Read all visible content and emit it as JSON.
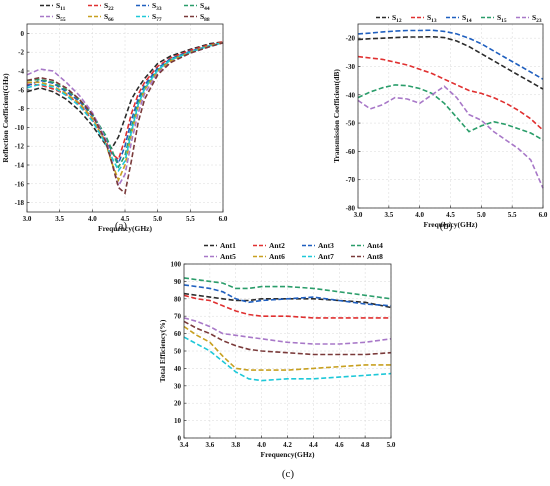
{
  "chart_data": [
    {
      "id": "a",
      "type": "line",
      "caption": "(a)",
      "xlabel": "Frequency(GHz)",
      "ylabel": "Reflection Coefficient(GHz)",
      "xlim": [
        3.0,
        6.0
      ],
      "ylim": [
        -19,
        1
      ],
      "xticks": [
        3.0,
        3.5,
        4.0,
        4.5,
        5.0,
        5.5,
        6.0
      ],
      "xtick_labels": [
        "3.0",
        "3.5",
        "4.0",
        "4.5",
        "5.0",
        "5.5",
        "6.0"
      ],
      "yticks": [
        0,
        -2,
        -4,
        -6,
        -8,
        -10,
        -12,
        -14,
        -16,
        -18
      ],
      "ytick_labels": [
        "0",
        "-2",
        "-4",
        "-6",
        "-8",
        "-10",
        "-12",
        "-14",
        "-16",
        "-18"
      ],
      "grid": true,
      "legend_position": "top",
      "x": [
        3.0,
        3.2,
        3.4,
        3.6,
        3.8,
        4.0,
        4.2,
        4.3,
        4.4,
        4.5,
        4.6,
        4.7,
        4.8,
        5.0,
        5.2,
        5.5,
        5.8,
        6.0
      ],
      "series": [
        {
          "name": "S",
          "sub": "11",
          "color": "#2b2b2b",
          "values": [
            -6.2,
            -5.8,
            -6.2,
            -7.0,
            -8.2,
            -9.8,
            -11.8,
            -12.2,
            -11.0,
            -9.0,
            -7.0,
            -5.8,
            -4.8,
            -3.2,
            -2.4,
            -1.7,
            -1.1,
            -0.9
          ]
        },
        {
          "name": "S",
          "sub": "22",
          "color": "#e03030",
          "values": [
            -5.4,
            -5.5,
            -5.9,
            -6.5,
            -7.5,
            -9.2,
            -11.4,
            -12.8,
            -13.4,
            -11.2,
            -8.5,
            -6.5,
            -5.2,
            -3.5,
            -2.6,
            -1.8,
            -1.2,
            -0.9
          ]
        },
        {
          "name": "S",
          "sub": "33",
          "color": "#1f5fbf",
          "values": [
            -5.6,
            -5.0,
            -5.3,
            -6.2,
            -7.2,
            -8.8,
            -11.0,
            -12.6,
            -13.8,
            -12.0,
            -9.2,
            -7.0,
            -5.5,
            -3.7,
            -2.7,
            -1.9,
            -1.3,
            -1.0
          ]
        },
        {
          "name": "S",
          "sub": "44",
          "color": "#2a9d6a",
          "values": [
            -5.0,
            -4.9,
            -5.2,
            -6.0,
            -7.0,
            -8.6,
            -10.8,
            -12.4,
            -14.2,
            -13.0,
            -10.0,
            -7.4,
            -5.8,
            -3.9,
            -2.8,
            -2.0,
            -1.3,
            -1.0
          ]
        },
        {
          "name": "S",
          "sub": "55",
          "color": "#a878c8",
          "values": [
            -4.4,
            -3.8,
            -4.0,
            -5.2,
            -6.6,
            -8.4,
            -11.2,
            -13.6,
            -16.2,
            -15.0,
            -11.5,
            -8.5,
            -6.4,
            -4.2,
            -3.0,
            -2.1,
            -1.4,
            -1.0
          ]
        },
        {
          "name": "S",
          "sub": "66",
          "color": "#c8a020",
          "values": [
            -5.2,
            -5.2,
            -5.6,
            -6.4,
            -7.4,
            -9.0,
            -11.6,
            -13.8,
            -15.6,
            -14.0,
            -10.6,
            -7.8,
            -6.0,
            -4.0,
            -2.9,
            -2.0,
            -1.3,
            -1.0
          ]
        },
        {
          "name": "S",
          "sub": "77",
          "color": "#1ec8d8",
          "values": [
            -5.8,
            -5.4,
            -5.7,
            -6.6,
            -7.7,
            -9.3,
            -11.7,
            -13.2,
            -14.6,
            -13.6,
            -10.4,
            -7.6,
            -5.9,
            -3.9,
            -2.8,
            -2.0,
            -1.3,
            -1.0
          ]
        },
        {
          "name": "S",
          "sub": "88",
          "color": "#7a3a3a",
          "values": [
            -5.0,
            -4.7,
            -5.0,
            -5.8,
            -7.0,
            -8.6,
            -11.4,
            -13.8,
            -16.4,
            -17.0,
            -13.5,
            -9.5,
            -7.0,
            -4.4,
            -3.1,
            -2.1,
            -1.4,
            -1.0
          ]
        }
      ]
    },
    {
      "id": "b",
      "type": "line",
      "caption": "(b)",
      "xlabel": "Frequency(GHz)",
      "ylabel": "Transmission Coefficient(dB)",
      "xlim": [
        3.0,
        6.0
      ],
      "ylim": [
        -80,
        -15
      ],
      "xticks": [
        3.0,
        3.5,
        4.0,
        4.5,
        5.0,
        5.5,
        6.0
      ],
      "xtick_labels": [
        "3.0",
        "3.5",
        "4.0",
        "4.5",
        "5.0",
        "5.5",
        "6.0"
      ],
      "yticks": [
        -20,
        -30,
        -40,
        -50,
        -60,
        -70,
        -80
      ],
      "ytick_labels": [
        "-20",
        "-30",
        "-40",
        "-50",
        "-60",
        "-70",
        "-80"
      ],
      "grid": true,
      "legend_position": "top",
      "x": [
        3.0,
        3.2,
        3.4,
        3.6,
        3.8,
        4.0,
        4.2,
        4.4,
        4.6,
        4.8,
        5.0,
        5.2,
        5.4,
        5.6,
        5.8,
        6.0
      ],
      "series": [
        {
          "name": "S",
          "sub": "12",
          "color": "#2b2b2b",
          "values": [
            -20.5,
            -20.2,
            -20.0,
            -19.8,
            -19.6,
            -19.6,
            -19.5,
            -19.8,
            -21.0,
            -23.0,
            -25.5,
            -28.0,
            -30.5,
            -33.0,
            -35.5,
            -38.0
          ]
        },
        {
          "name": "S",
          "sub": "13",
          "color": "#e03030",
          "values": [
            -26.5,
            -27.0,
            -27.5,
            -28.5,
            -29.5,
            -31.0,
            -32.5,
            -34.5,
            -36.5,
            -38.5,
            -39.5,
            -41.0,
            -43.0,
            -45.5,
            -48.5,
            -52.5
          ]
        },
        {
          "name": "S",
          "sub": "14",
          "color": "#1f5fbf",
          "values": [
            -18.5,
            -18.2,
            -17.8,
            -17.5,
            -17.3,
            -17.3,
            -17.2,
            -17.6,
            -18.5,
            -20.0,
            -22.0,
            -24.5,
            -27.0,
            -29.5,
            -32.0,
            -34.5
          ]
        },
        {
          "name": "S",
          "sub": "15",
          "color": "#2a9d6a",
          "values": [
            -41.0,
            -39.0,
            -37.5,
            -36.5,
            -36.8,
            -37.8,
            -39.5,
            -43.0,
            -48.0,
            -53.0,
            -51.0,
            -49.5,
            -50.5,
            -52.0,
            -53.5,
            -56.0
          ]
        },
        {
          "name": "S",
          "sub": "23",
          "color": "#a878c8",
          "values": [
            -42.0,
            -45.0,
            -43.5,
            -41.0,
            -41.5,
            -43.0,
            -40.0,
            -37.0,
            -41.0,
            -47.0,
            -49.0,
            -53.0,
            -56.0,
            -59.0,
            -63.0,
            -73.0
          ]
        }
      ]
    },
    {
      "id": "c",
      "type": "line",
      "caption": "(c)",
      "xlabel": "Frequency(GHz)",
      "ylabel": "Total Efficiency(%)",
      "xlim": [
        3.4,
        5.0
      ],
      "ylim": [
        0,
        100
      ],
      "xticks": [
        3.4,
        3.6,
        3.8,
        4.0,
        4.2,
        4.4,
        4.6,
        4.8,
        5.0
      ],
      "xtick_labels": [
        "3.4",
        "3.6",
        "3.8",
        "4.0",
        "4.2",
        "4.4",
        "4.6",
        "4.8",
        "5.0"
      ],
      "yticks": [
        0,
        10,
        20,
        30,
        40,
        50,
        60,
        70,
        80,
        90,
        100
      ],
      "ytick_labels": [
        "0",
        "10",
        "20",
        "30",
        "40",
        "50",
        "60",
        "70",
        "80",
        "90",
        "100"
      ],
      "grid": true,
      "legend_position": "top",
      "x": [
        3.4,
        3.5,
        3.6,
        3.7,
        3.8,
        3.9,
        4.0,
        4.2,
        4.4,
        4.6,
        4.8,
        5.0
      ],
      "series": [
        {
          "name": "Ant1",
          "color": "#2b2b2b",
          "values": [
            83,
            82,
            81,
            80,
            79,
            79,
            80,
            80,
            80,
            79,
            78,
            75
          ]
        },
        {
          "name": "Ant2",
          "color": "#e03030",
          "values": [
            82,
            80,
            79,
            76,
            73,
            71,
            70,
            70,
            69,
            69,
            69,
            69
          ]
        },
        {
          "name": "Ant3",
          "color": "#1f5fbf",
          "values": [
            88,
            87,
            86,
            84,
            80,
            78,
            79,
            80,
            81,
            79,
            77,
            76
          ]
        },
        {
          "name": "Ant4",
          "color": "#2a9d6a",
          "values": [
            92,
            91,
            90,
            89,
            86,
            86,
            87,
            87,
            86,
            84,
            82,
            80
          ]
        },
        {
          "name": "Ant5",
          "color": "#a878c8",
          "values": [
            69,
            67,
            64,
            60,
            59,
            58,
            57,
            55,
            54,
            54,
            55,
            57
          ]
        },
        {
          "name": "Ant6",
          "color": "#c8a020",
          "values": [
            64,
            59,
            55,
            47,
            40,
            39,
            39,
            39,
            40,
            41,
            42,
            42
          ]
        },
        {
          "name": "Ant7",
          "color": "#1ec8d8",
          "values": [
            58,
            54,
            50,
            44,
            38,
            34,
            33,
            34,
            34,
            35,
            36,
            37
          ]
        },
        {
          "name": "Ant8",
          "color": "#7a3a3a",
          "values": [
            67,
            63,
            60,
            56,
            53,
            51,
            50,
            49,
            48,
            48,
            48,
            49
          ]
        }
      ]
    }
  ]
}
